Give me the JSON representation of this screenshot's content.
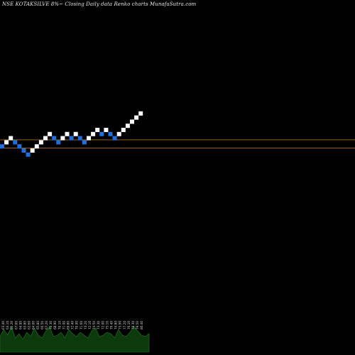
{
  "chart_data": {
    "type": "renko",
    "title": "NSE KOTAKSILVE 8%~  Closing Daily data  Renko  charts MunafaSutra.com",
    "bricks": [
      {
        "dir": "down",
        "value": 3
      },
      {
        "dir": "up",
        "value": 4
      },
      {
        "dir": "up",
        "value": 5
      },
      {
        "dir": "down",
        "value": 4
      },
      {
        "dir": "down",
        "value": 3
      },
      {
        "dir": "down",
        "value": 2
      },
      {
        "dir": "down",
        "value": 1
      },
      {
        "dir": "up",
        "value": 2
      },
      {
        "dir": "up",
        "value": 3
      },
      {
        "dir": "up",
        "value": 4
      },
      {
        "dir": "up",
        "value": 5
      },
      {
        "dir": "up",
        "value": 6
      },
      {
        "dir": "down",
        "value": 5
      },
      {
        "dir": "down",
        "value": 4
      },
      {
        "dir": "up",
        "value": 5
      },
      {
        "dir": "up",
        "value": 6
      },
      {
        "dir": "down",
        "value": 5
      },
      {
        "dir": "up",
        "value": 6
      },
      {
        "dir": "down",
        "value": 5
      },
      {
        "dir": "down",
        "value": 4
      },
      {
        "dir": "up",
        "value": 5
      },
      {
        "dir": "up",
        "value": 6
      },
      {
        "dir": "up",
        "value": 7
      },
      {
        "dir": "down",
        "value": 6
      },
      {
        "dir": "up",
        "value": 7
      },
      {
        "dir": "down",
        "value": 6
      },
      {
        "dir": "down",
        "value": 5
      },
      {
        "dir": "up",
        "value": 6
      },
      {
        "dir": "up",
        "value": 7
      },
      {
        "dir": "up",
        "value": 8
      },
      {
        "dir": "up",
        "value": 9
      },
      {
        "dir": "up",
        "value": 10
      },
      {
        "dir": "up",
        "value": 11
      }
    ],
    "reference_lines": [
      4.6,
      2.6
    ],
    "volume_bars": [
      0.55,
      0.8,
      0.6,
      0.9,
      0.5,
      0.65,
      0.45,
      0.7,
      0.55,
      0.85,
      0.6,
      0.5,
      0.75,
      0.9,
      0.55,
      0.6,
      0.7,
      0.5,
      0.8,
      0.65,
      0.55,
      0.7,
      0.6,
      0.5,
      0.75,
      0.85,
      0.55,
      0.6,
      0.7,
      0.65,
      0.5,
      0.8,
      0.6,
      0.55,
      0.7,
      0.9,
      0.75,
      0.6,
      0.55,
      0.65
    ],
    "price_labels": [
      "63.40",
      "64.10",
      "65.20",
      "67.00",
      "64.90",
      "63.80",
      "62.60",
      "64.00",
      "65.80",
      "66.50",
      "67.20",
      "70.30",
      "68.90",
      "70.10",
      "71.00",
      "69.80",
      "72.40",
      "70.90",
      "71.60",
      "73.20",
      "72.10",
      "74.50",
      "73.30",
      "72.00",
      "75.10",
      "76.40",
      "74.80",
      "75.90",
      "77.20",
      "76.10",
      "78.30",
      "79.50",
      "80.40"
    ]
  },
  "colors": {
    "background": "#000000",
    "up_brick": "#ffffff",
    "down_brick": "#1e6fe0",
    "reference_line": "#b06a1a",
    "volume_fill": "#0c3a0c",
    "volume_stroke": "#1f7a1f",
    "label_color": "#cfcfcf"
  }
}
